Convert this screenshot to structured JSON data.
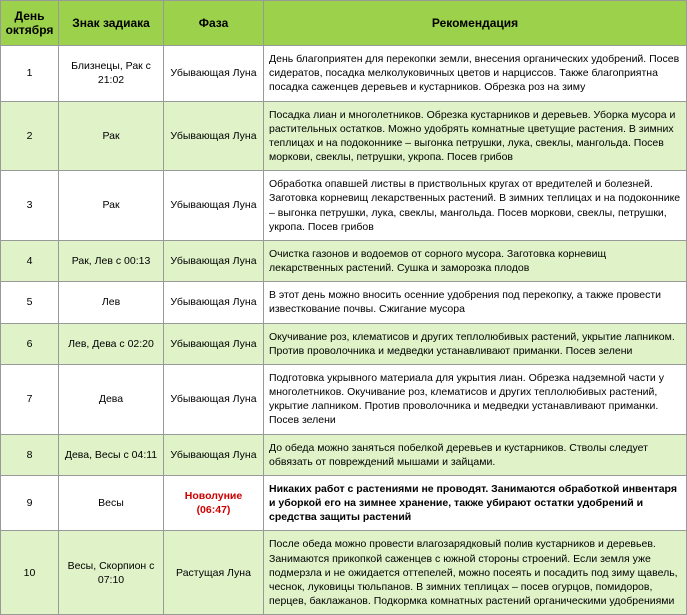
{
  "headers": {
    "day": "День октября",
    "sign": "Знак задиака",
    "phase": "Фаза",
    "rec": "Рекомендация"
  },
  "rows": [
    {
      "day": "1",
      "sign": "Близнецы, Рак с 21:02",
      "phase": "Убывающая Луна",
      "rec": "День благоприятен для перекопки земли, внесения органических удобрений. Посев сидератов, посадка мелколуковичных цветов и нарциссов. Также благоприятна посадка саженцев деревьев и кустарников. Обрезка роз на зиму",
      "rowClass": "white-row"
    },
    {
      "day": "2",
      "sign": "Рак",
      "phase": "Убывающая Луна",
      "rec": "Посадка лиан и многолетников. Обрезка кустарников и деревьев. Уборка мусора и растительных остатков. Можно удобрять комнатные цветущие растения. В зимних теплицах и на подоконнике – выгонка петрушки, лука, свеклы, мангольда. Посев моркови, свеклы, петрушки, укропа. Посев грибов",
      "rowClass": "light-row"
    },
    {
      "day": "3",
      "sign": "Рак",
      "phase": "Убывающая Луна",
      "rec": "Обработка опавшей листвы в приствольных кругах от вредителей и болезней. Заготовка корневищ лекарственных растений. В зимних теплицах и на подоконнике – выгонка петрушки, лука, свеклы, мангольда. Посев моркови, свеклы, петрушки, укропа. Посев грибов",
      "rowClass": "white-row"
    },
    {
      "day": "4",
      "sign": "Рак, Лев с 00:13",
      "phase": "Убывающая Луна",
      "rec": "Очистка газонов и водоемов от сорного мусора. Заготовка корневищ лекарственных растений. Сушка и заморозка плодов",
      "rowClass": "light-row"
    },
    {
      "day": "5",
      "sign": "Лев",
      "phase": "Убывающая Луна",
      "rec": "В этот день можно вносить осенние удобрения под перекопку, а также провести известкование почвы. Сжигание мусора",
      "rowClass": "white-row"
    },
    {
      "day": "6",
      "sign": "Лев, Дева с 02:20",
      "phase": "Убывающая Луна",
      "rec": "Окучивание роз, клематисов и других теплолюбивых растений, укрытие лапником. Против проволочника и медведки устанавливают приманки. Посев зелени",
      "rowClass": "light-row"
    },
    {
      "day": "7",
      "sign": "Дева",
      "phase": "Убывающая Луна",
      "rec": "Подготовка укрывного материала для укрытия лиан. Обрезка надземной части у многолетников. Окучивание роз, клематисов и других теплолюбивых растений, укрытие лапником. Против проволочника и медведки устанавливают приманки. Посев зелени",
      "rowClass": "white-row"
    },
    {
      "day": "8",
      "sign": "Дева, Весы с 04:11",
      "phase": "Убывающая Луна",
      "rec": "До обеда можно заняться побелкой деревьев и кустарников. Стволы следует обвязать от повреждений мышами и зайцами.",
      "rowClass": "light-row"
    },
    {
      "day": "9",
      "sign": "Весы",
      "phase": "Новолуние (06:47)",
      "rec": "Никаких работ с растениями не проводят. Занимаются обработкой инвентаря и уборкой его на зимнее хранение, также убирают остатки удобрений и средства защиты растений",
      "rowClass": "white-row bold-row",
      "phaseClass": "new-moon"
    },
    {
      "day": "10",
      "sign": "Весы, Скорпион с 07:10",
      "phase": "Растущая Луна",
      "rec": "После обеда можно провести влагозарядковый полив кустарников и деревьев. Занимаются прикопкой саженцев с южной стороны строений. Если земля уже подмерзла и не ожидается оттепелей, можно посеять и посадить под зиму щавель, чеснок, луковицы тюльпанов. В зимних теплицах – посев огурцов, помидоров, перцев, баклажанов. Подкормка комнатных растений органическими удобрениями",
      "rowClass": "light-row"
    }
  ]
}
